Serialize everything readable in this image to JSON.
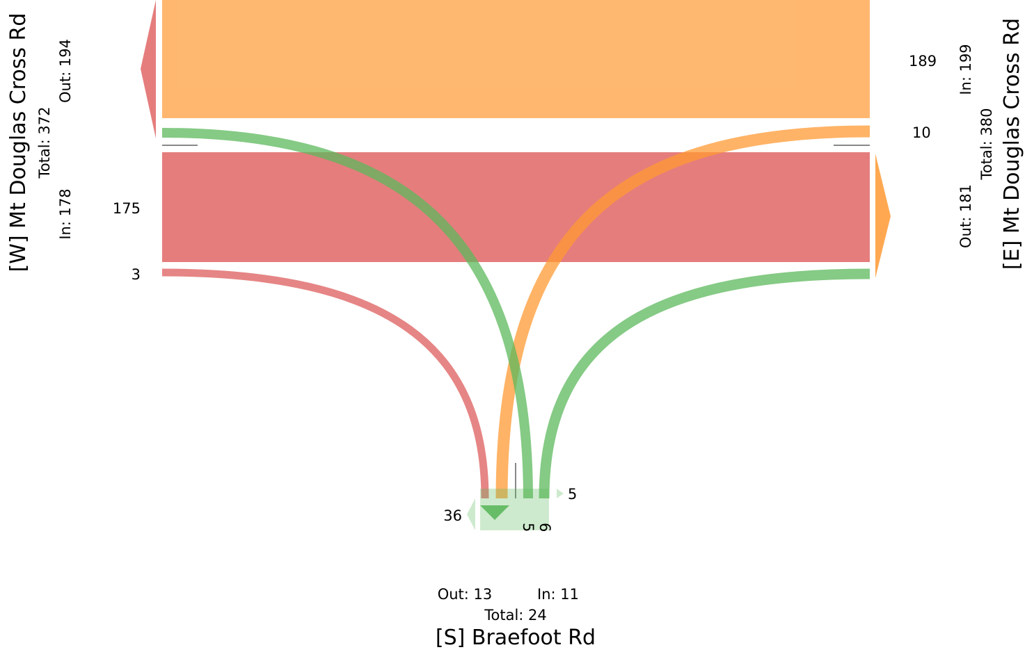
{
  "colors": {
    "from_west": "#e06666",
    "from_east": "#ff9933",
    "from_south": "#5cb85c"
  },
  "roads": {
    "west": {
      "name": "[W] Mt Douglas Cross Rd",
      "total": "Total: 372",
      "in": "In: 178",
      "out": "Out: 194"
    },
    "east": {
      "name": "[E] Mt Douglas Cross Rd",
      "total": "Total: 380",
      "in": "In: 199",
      "out": "Out: 181"
    },
    "south": {
      "name": "[S] Braefoot Rd",
      "total": "Total: 24",
      "in": "In: 11",
      "out": "Out: 13"
    }
  },
  "flows": {
    "east_to_west": {
      "value": 189,
      "label": "189"
    },
    "east_to_south": {
      "value": 10,
      "label": "10"
    },
    "west_to_east": {
      "value": 175,
      "label": "175"
    },
    "west_to_south": {
      "value": 3,
      "label": "3"
    },
    "south_to_west": {
      "value": 5,
      "label": "5"
    },
    "south_to_east": {
      "value": 6,
      "label": "6"
    },
    "south_uturn": {
      "value": 36,
      "label": "36"
    },
    "south_side_right": {
      "value": 5,
      "label": "5"
    },
    "south_side_bottom": {
      "value": 5,
      "label": "5"
    }
  }
}
